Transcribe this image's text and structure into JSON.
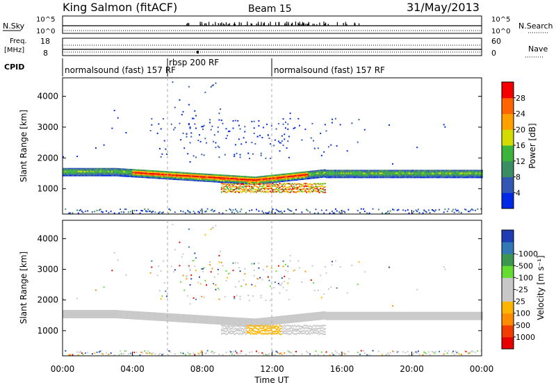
{
  "header": {
    "station": "King Salmon (fitACF)",
    "beam": "Beam 15",
    "date": "31/May/2013"
  },
  "strip_labels": {
    "nsky": "N.Sky",
    "nsky_top": "10^5",
    "nsky_bottom": "10^0",
    "nsearch": "N.Search",
    "nsearch_top": "10^5",
    "nsearch_bottom": "10^0",
    "freq_line1": "Freq.",
    "freq_line2": "[MHz]",
    "freq_top": "18",
    "freq_bottom": "8",
    "nave": "Nave",
    "nave_top": "60",
    "nave_bottom": "0",
    "cpid": "CPID"
  },
  "cpid_segments": [
    {
      "label": "normalsound (fast) 157 RF",
      "start_hour": 0
    },
    {
      "label": "rbsp 200 RF",
      "start_hour": 6
    },
    {
      "label": "normalsound (fast) 157 RF",
      "start_hour": 12
    }
  ],
  "colors": {
    "power": [
      "#0028e6",
      "#3258b4",
      "#3c8c64",
      "#3cb43c",
      "#d2dc00",
      "#ffa000",
      "#ff6400",
      "#f50000"
    ],
    "velocity": [
      "#e60000",
      "#f03c00",
      "#ff8c00",
      "#ffb400",
      "#c8c8c8",
      "#c8c8c8",
      "#64dc32",
      "#3c9650",
      "#3278b4",
      "#1e3cb4"
    ]
  },
  "chart_data": [
    {
      "type": "heatmap",
      "name": "power",
      "xlabel": "",
      "ylabel": "Slant Range [km]",
      "xlim": [
        0,
        24
      ],
      "ylim": [
        180,
        4600
      ],
      "yticks": [
        "1000",
        "2000",
        "3000",
        "4000"
      ],
      "colorbar": {
        "label": "Power [dB]",
        "range": [
          0,
          32
        ],
        "ticks": [
          "4",
          "8",
          "12",
          "16",
          "20",
          "24",
          "28"
        ]
      }
    },
    {
      "type": "heatmap",
      "name": "velocity",
      "xlabel": "Time UT",
      "ylabel": "Slant Range [km]",
      "xlim": [
        0,
        24
      ],
      "ylim": [
        180,
        4600
      ],
      "xticks": [
        "00:00",
        "04:00",
        "08:00",
        "12:00",
        "16:00",
        "20:00",
        "00:00"
      ],
      "yticks": [
        "1000",
        "2000",
        "3000",
        "4000"
      ],
      "colorbar": {
        "label": "Velocity [m s⁻¹]",
        "ticks": [
          "1000",
          "500",
          "100",
          "25",
          "-25",
          "-100",
          "-500",
          "-1000"
        ]
      }
    }
  ]
}
